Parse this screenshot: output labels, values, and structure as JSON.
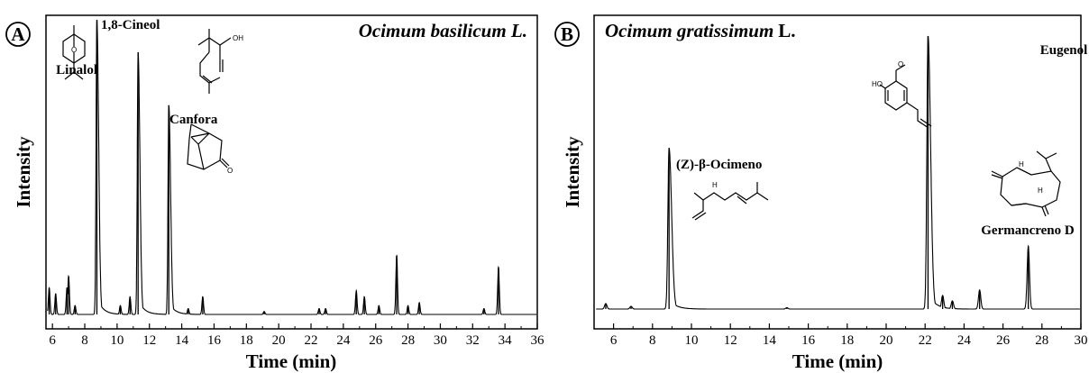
{
  "chart_data": [
    {
      "type": "line",
      "panel_letter": "A",
      "title": "Ocimum basilicum L.",
      "xlabel": "Time (min)",
      "ylabel": "Intensity",
      "xlim": [
        5.6,
        36
      ],
      "ylim": [
        0,
        100
      ],
      "xticks": [
        6,
        8,
        10,
        12,
        14,
        16,
        18,
        20,
        22,
        24,
        26,
        28,
        30,
        32,
        34,
        36
      ],
      "peaks": [
        {
          "x": 5.8,
          "y": 9
        },
        {
          "x": 6.2,
          "y": 7
        },
        {
          "x": 6.9,
          "y": 9
        },
        {
          "x": 7.0,
          "y": 13
        },
        {
          "x": 7.4,
          "y": 3
        },
        {
          "x": 8.75,
          "y": 100
        },
        {
          "x": 10.2,
          "y": 3
        },
        {
          "x": 10.8,
          "y": 6
        },
        {
          "x": 11.3,
          "y": 89
        },
        {
          "x": 13.2,
          "y": 71
        },
        {
          "x": 14.4,
          "y": 2
        },
        {
          "x": 15.3,
          "y": 6
        },
        {
          "x": 19.1,
          "y": 1
        },
        {
          "x": 22.5,
          "y": 2
        },
        {
          "x": 22.9,
          "y": 2
        },
        {
          "x": 24.8,
          "y": 8
        },
        {
          "x": 25.3,
          "y": 6
        },
        {
          "x": 26.2,
          "y": 3
        },
        {
          "x": 27.3,
          "y": 20
        },
        {
          "x": 28.0,
          "y": 3
        },
        {
          "x": 28.7,
          "y": 4
        },
        {
          "x": 32.7,
          "y": 2
        },
        {
          "x": 33.6,
          "y": 16
        }
      ],
      "annotations": [
        {
          "label": "1,8-Cineol",
          "x": 8.75
        },
        {
          "label": "Linalol",
          "x": 11.3
        },
        {
          "label": "Canfora",
          "x": 13.2
        }
      ]
    },
    {
      "type": "line",
      "panel_letter": "B",
      "title": "Ocimum gratissimum",
      "title_suffix": "L.",
      "xlabel": "Time (min)",
      "ylabel": "Intensity",
      "xlim": [
        5,
        30
      ],
      "ylim": [
        0,
        100
      ],
      "xticks": [
        6,
        8,
        10,
        12,
        14,
        16,
        18,
        20,
        22,
        24,
        26,
        28,
        30
      ],
      "peaks": [
        {
          "x": 5.6,
          "y": 2
        },
        {
          "x": 6.9,
          "y": 1
        },
        {
          "x": 8.85,
          "y": 59
        },
        {
          "x": 14.9,
          "y": 0.5
        },
        {
          "x": 22.15,
          "y": 100
        },
        {
          "x": 22.9,
          "y": 5
        },
        {
          "x": 23.4,
          "y": 3
        },
        {
          "x": 24.8,
          "y": 7
        },
        {
          "x": 27.3,
          "y": 23
        }
      ],
      "annotations": [
        {
          "label": "(Z)-β-Ocimeno",
          "x": 8.85
        },
        {
          "label": "Eugenol",
          "x": 22.15
        },
        {
          "label": "Germancreno D",
          "x": 27.3
        }
      ]
    }
  ]
}
